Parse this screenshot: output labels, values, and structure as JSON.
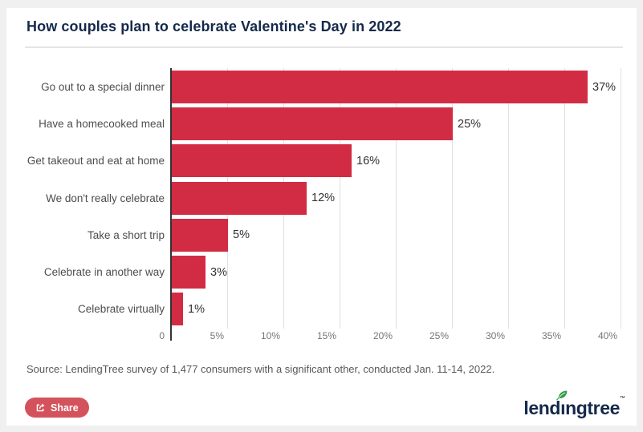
{
  "header": {
    "title": "How couples plan to celebrate Valentine's Day in 2022"
  },
  "chart_data": {
    "type": "bar",
    "orientation": "horizontal",
    "title": "How couples plan to celebrate Valentine's Day in 2022",
    "categories": [
      "Go out to a special dinner",
      "Have a homecooked meal",
      "Get takeout and eat at home",
      "We don't really celebrate",
      "Take a short trip",
      "Celebrate in another way",
      "Celebrate virtually"
    ],
    "values": [
      37,
      25,
      16,
      12,
      5,
      3,
      1
    ],
    "value_labels": [
      "37%",
      "25%",
      "16%",
      "12%",
      "5%",
      "3%",
      "1%"
    ],
    "x_axis": {
      "min": 0,
      "max": 40,
      "ticks": [
        0,
        5,
        10,
        15,
        20,
        25,
        30,
        35,
        40
      ],
      "tick_labels": [
        "0",
        "5%",
        "10%",
        "15%",
        "20%",
        "25%",
        "30%",
        "35%",
        "40%"
      ],
      "grid": true
    },
    "bar_color": "#d22c44",
    "legend": "none"
  },
  "source_note": "Source: LendingTree survey of 1,477 consumers with a significant other, conducted Jan. 11-14, 2022.",
  "share_button": {
    "label": "Share"
  },
  "logo": {
    "brand": "lendingtree",
    "display_before": "lend",
    "display_i": "ı",
    "display_after": "ngtree",
    "trademark": "™"
  },
  "colors": {
    "bar": "#d22c44",
    "title": "#15294b",
    "category_label": "#4d4d4d",
    "value_label": "#333333",
    "tick_label": "#757575",
    "gridline": "#e0e0e0",
    "axis_line": "#333333",
    "divider": "#e4e4e4",
    "share": "#d4525c",
    "logo_text": "#13294b",
    "leaf": "#2f9e48",
    "card_bg": "#ffffff",
    "page_bg": "#f0f0f1"
  }
}
